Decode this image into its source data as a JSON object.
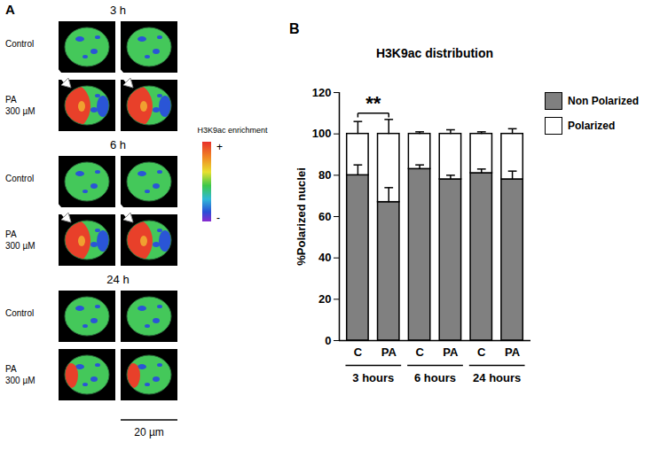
{
  "panel_labels": [
    "A",
    "B"
  ],
  "panel_a": {
    "timepoints": [
      "3 h",
      "6 h",
      "24 h"
    ],
    "row_labels": {
      "control": "Control",
      "treatment": [
        "PA",
        "300 µM"
      ]
    },
    "colorbar": {
      "title": "H3K9ac enrichment",
      "high": "+",
      "low": "-"
    },
    "scale_bar": "20 µm"
  },
  "chart_data": {
    "type": "bar",
    "stacked": true,
    "title": "H3K9ac distribution",
    "y_label": "%Polarized nuclei",
    "categories": [
      "C",
      "PA",
      "C",
      "PA",
      "C",
      "PA"
    ],
    "groups": [
      "3 hours",
      "6 hours",
      "24 hours"
    ],
    "series": [
      {
        "name": "Non Polarized",
        "color": "#808080",
        "values": [
          80,
          67,
          83,
          78,
          81,
          78
        ],
        "errors": [
          5,
          7,
          2,
          2,
          2,
          4
        ]
      },
      {
        "name": "Polarized",
        "color": "#ffffff",
        "values": [
          20,
          33,
          17,
          22,
          19,
          22
        ],
        "errors": [
          6,
          7,
          1,
          2,
          1,
          2.5
        ]
      }
    ],
    "annotations": [
      {
        "text": "**",
        "from": 0,
        "to": 1
      }
    ],
    "ylim": [
      0,
      120
    ],
    "yticks": [
      0,
      20,
      40,
      60,
      80,
      100,
      120
    ],
    "legend": "right",
    "grid": false
  }
}
